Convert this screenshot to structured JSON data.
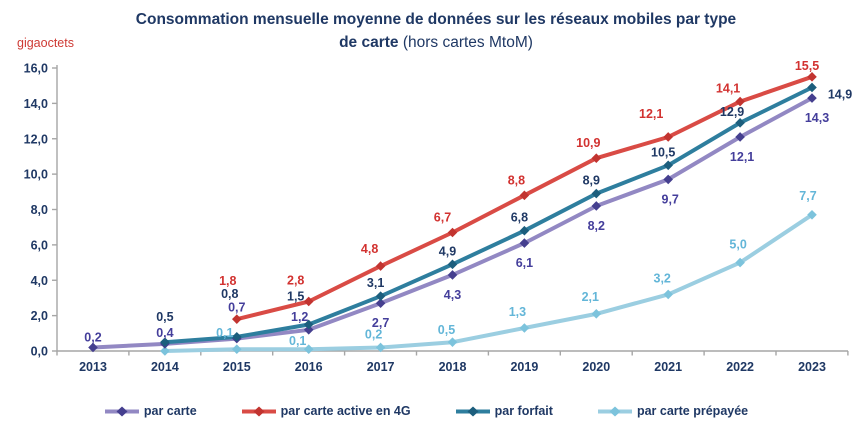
{
  "header": {
    "title_line1": "Consommation mensuelle moyenne de données sur les réseaux mobiles par type",
    "title_line2_bold": "de carte",
    "title_line2_rest": "(hors cartes MtoM)",
    "unit_label": "gigaoctets"
  },
  "colors": {
    "title": "#1F3864",
    "axis": "#A6A6A6",
    "tick_text": "#1F3864",
    "unit_text": "#CE3A34",
    "background": "#FFFFFF"
  },
  "chart_data": {
    "type": "line",
    "title": "Consommation mensuelle moyenne de données sur les réseaux mobiles par type de carte (hors cartes MtoM)",
    "ylabel": "gigaoctets",
    "xlabel": "",
    "categories": [
      "2013",
      "2014",
      "2015",
      "2016",
      "2017",
      "2018",
      "2019",
      "2020",
      "2021",
      "2022",
      "2023"
    ],
    "ylim": [
      0,
      16
    ],
    "ytick_step": 2,
    "ytick_labels": [
      "0,0",
      "2,0",
      "4,0",
      "6,0",
      "8,0",
      "10,0",
      "12,0",
      "14,0",
      "16,0"
    ],
    "grid": false,
    "legend_position": "bottom",
    "decimal_separator": ",",
    "series": [
      {
        "name": "par carte prépayée",
        "line_color": "#9BCEE1",
        "marker_color": "#7CC3DC",
        "label_color": "#63B6D8",
        "values": [
          null,
          0.0,
          0.1,
          0.1,
          0.2,
          0.5,
          1.3,
          2.1,
          3.2,
          5.0,
          7.7
        ],
        "labels": [
          null,
          null,
          "0,1",
          "0,1",
          "0,2",
          "0,5",
          "1,3",
          "2,1",
          "3,2",
          "5,0",
          "7,7"
        ],
        "label_offsets": [
          [
            0,
            0
          ],
          [
            0,
            0
          ],
          [
            -12,
            -12
          ],
          [
            -11,
            -4
          ],
          [
            -7,
            -9
          ],
          [
            -6,
            -8
          ],
          [
            -7,
            -12
          ],
          [
            -6,
            -13
          ],
          [
            -6,
            -12
          ],
          [
            -2,
            -14
          ],
          [
            -4,
            -15
          ]
        ]
      },
      {
        "name": "par carte",
        "line_color": "#9288C3",
        "marker_color": "#453F8F",
        "label_color": "#443E9B",
        "values": [
          0.2,
          0.4,
          0.7,
          1.2,
          2.7,
          4.3,
          6.1,
          8.2,
          9.7,
          12.1,
          14.3
        ],
        "labels": [
          "0,2",
          "0,4",
          "0,7",
          "1,2",
          "2,7",
          "4,3",
          "6,1",
          "8,2",
          "9,7",
          "12,1",
          "14,3"
        ],
        "label_offsets": [
          [
            0,
            -6
          ],
          [
            0,
            -7
          ],
          [
            0,
            -27
          ],
          [
            -9,
            -9
          ],
          [
            0,
            24
          ],
          [
            0,
            24
          ],
          [
            0,
            24
          ],
          [
            0,
            24
          ],
          [
            2,
            24
          ],
          [
            2,
            24
          ],
          [
            5,
            24
          ]
        ]
      },
      {
        "name": "par forfait",
        "line_color": "#2E7E9E",
        "marker_color": "#1C5E7D",
        "label_color": "#1F3864",
        "values": [
          null,
          0.5,
          0.8,
          1.5,
          3.1,
          4.9,
          6.8,
          8.9,
          10.5,
          12.9,
          14.9
        ],
        "labels": [
          null,
          "0,5",
          "0,8",
          "1,5",
          "3,1",
          "4,9",
          "6,8",
          "8,9",
          "10,5",
          "12,9",
          "14,9"
        ],
        "label_offsets": [
          [
            0,
            0
          ],
          [
            0,
            -21
          ],
          [
            -7,
            -39
          ],
          [
            -13,
            -24
          ],
          [
            -5,
            -9
          ],
          [
            -5,
            -9
          ],
          [
            -5,
            -9
          ],
          [
            -5,
            -9
          ],
          [
            -5,
            -9
          ],
          [
            -8,
            -7
          ],
          [
            28,
            11
          ]
        ]
      },
      {
        "name": "par carte active en 4G",
        "line_color": "#D94B45",
        "marker_color": "#C23430",
        "label_color": "#D23230",
        "values": [
          null,
          null,
          1.8,
          2.8,
          4.8,
          6.7,
          8.8,
          10.9,
          12.1,
          14.1,
          15.5
        ],
        "labels": [
          null,
          null,
          "1,8",
          "2,8",
          "4,8",
          "6,7",
          "8,8",
          "10,9",
          "12,1",
          "14,1",
          "15,5"
        ],
        "label_offsets": [
          [
            0,
            0
          ],
          [
            0,
            0
          ],
          [
            -9,
            -34
          ],
          [
            -13,
            -17
          ],
          [
            -11,
            -13
          ],
          [
            -10,
            -11
          ],
          [
            -8,
            -11
          ],
          [
            -8,
            -11
          ],
          [
            -17,
            -19
          ],
          [
            -12,
            -9
          ],
          [
            -5,
            -7
          ]
        ]
      }
    ]
  }
}
